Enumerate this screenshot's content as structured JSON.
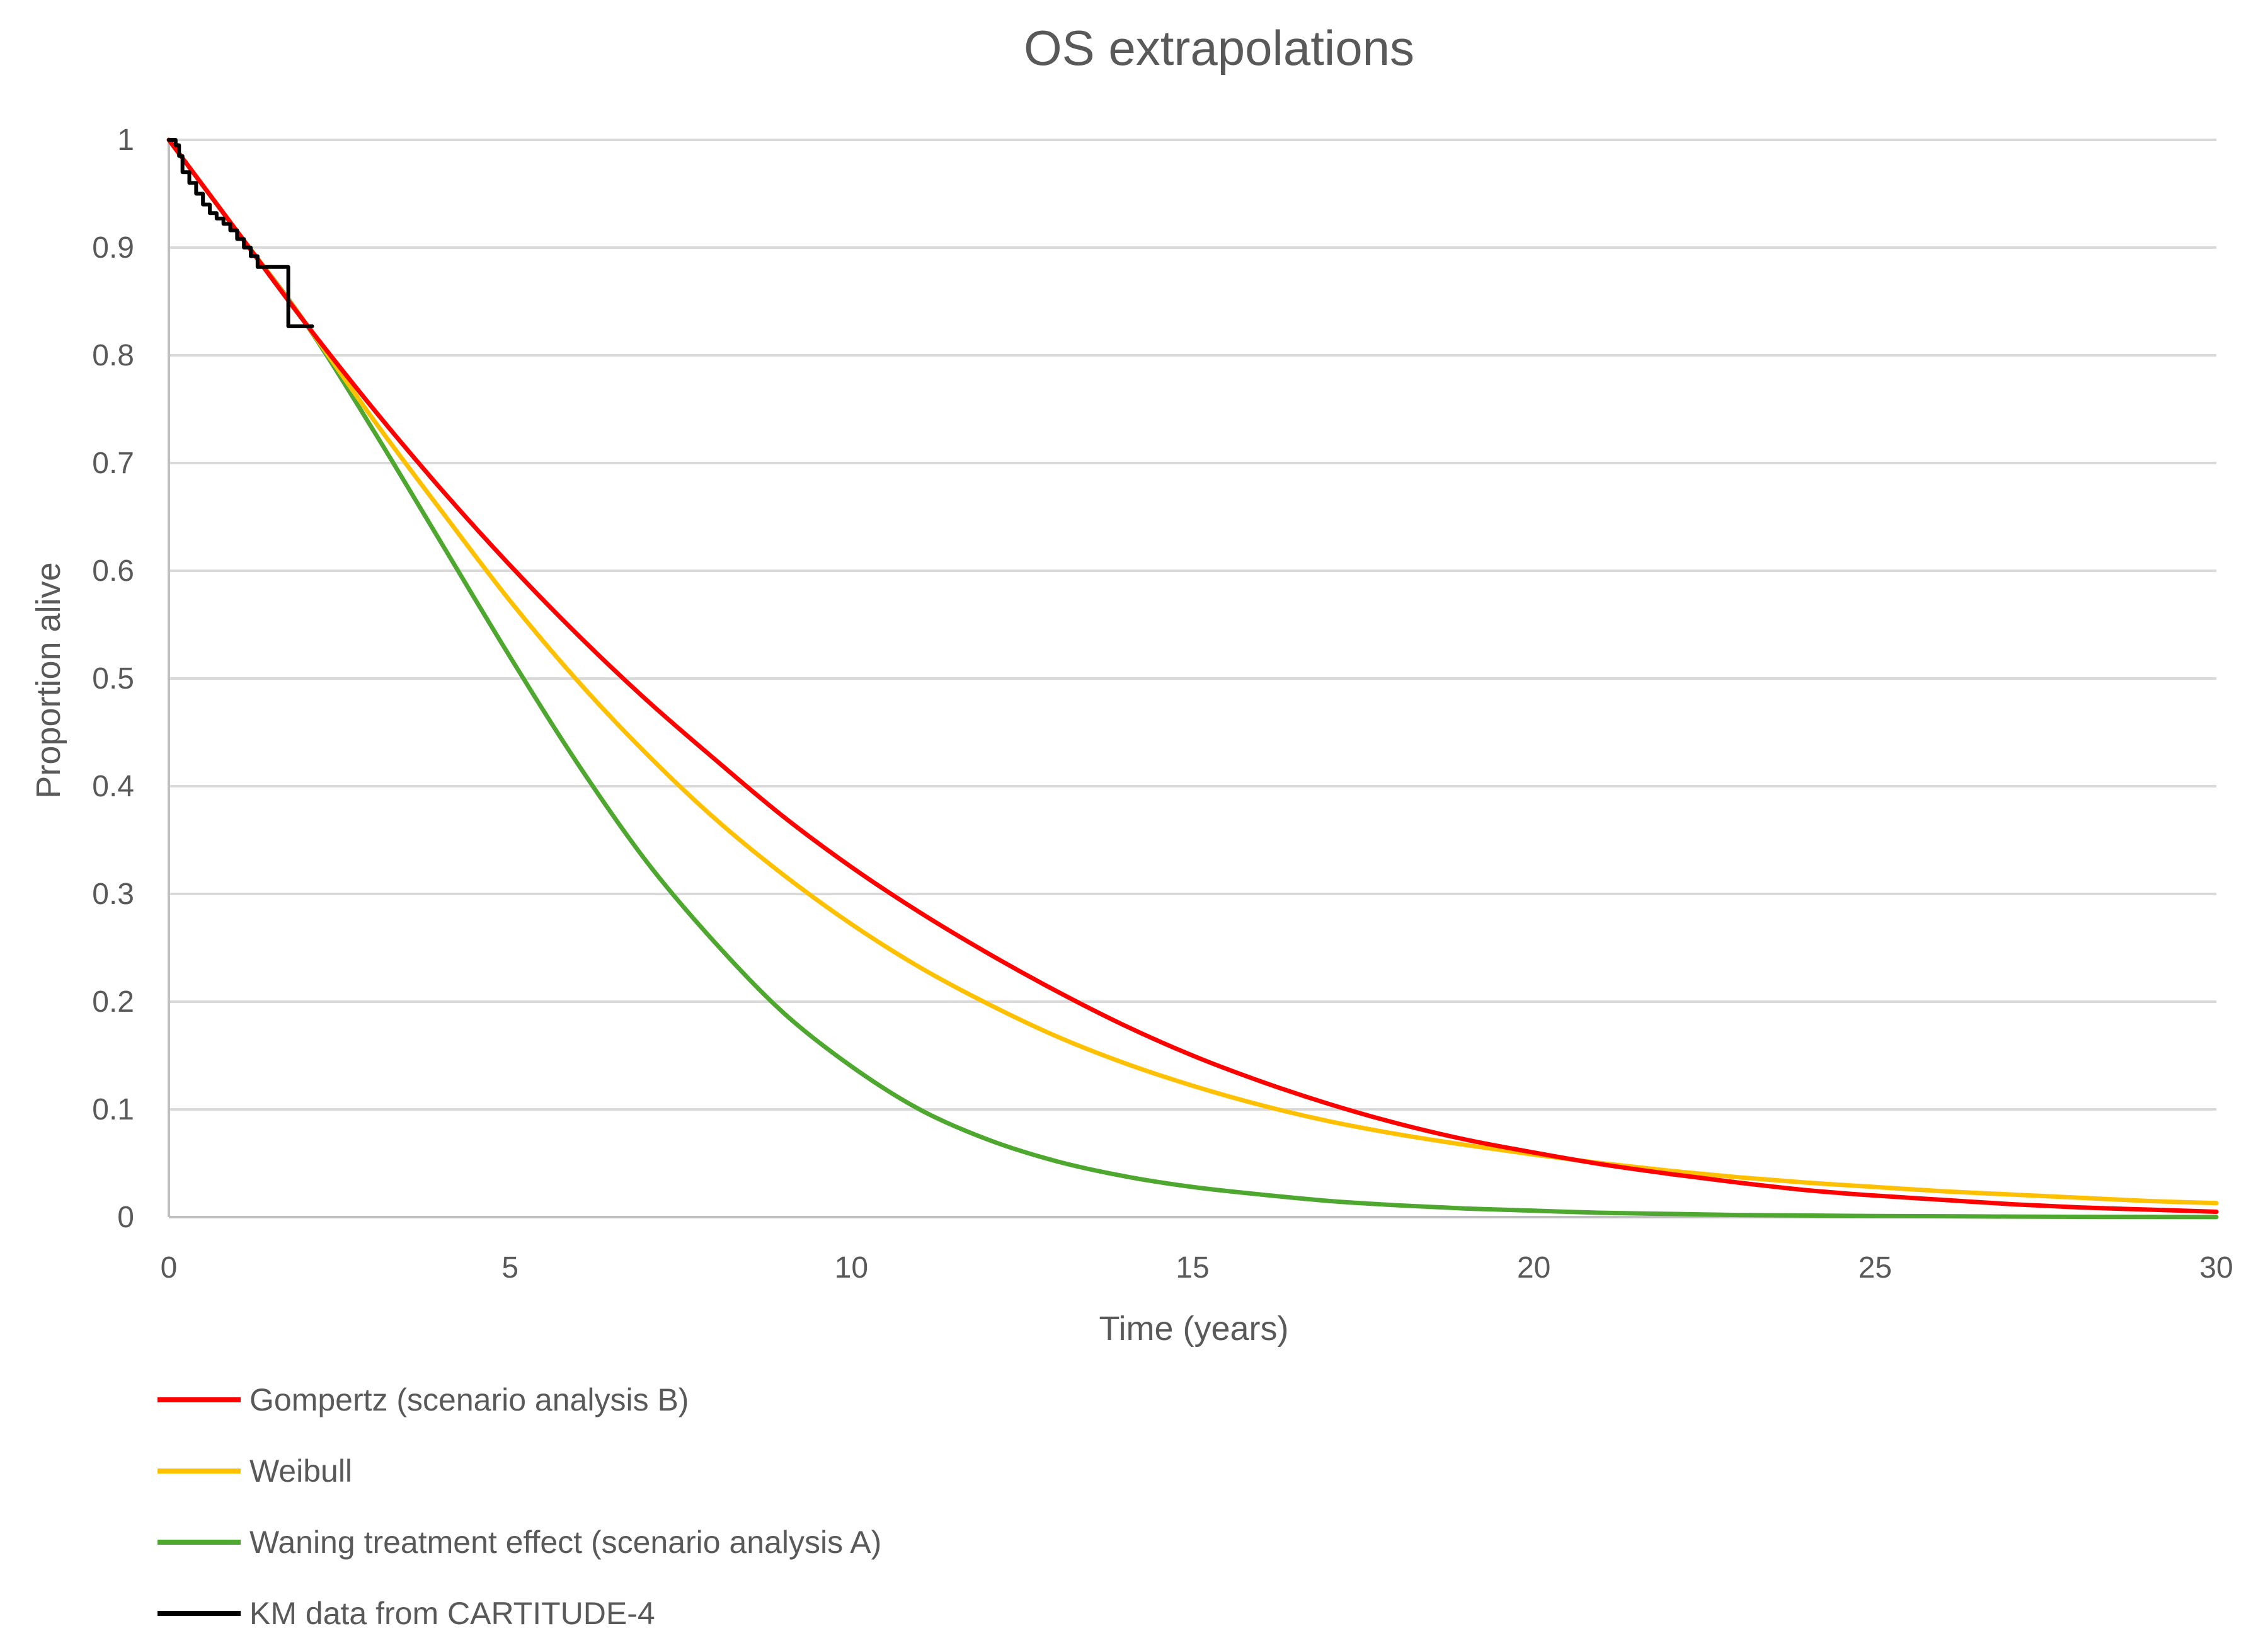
{
  "chart_data": {
    "type": "line",
    "title": "OS extrapolations",
    "xlabel": "Time (years)",
    "ylabel": "Proportion alive",
    "xlim": [
      0,
      30
    ],
    "ylim": [
      0,
      1
    ],
    "x_ticks": [
      0,
      5,
      10,
      15,
      20,
      25,
      30
    ],
    "y_ticks": [
      0,
      0.1,
      0.2,
      0.3,
      0.4,
      0.5,
      0.6,
      0.7,
      0.8,
      0.9,
      1
    ],
    "x_tick_labels": [
      "0",
      "5",
      "10",
      "15",
      "20",
      "25",
      "30"
    ],
    "y_tick_labels": [
      "0",
      "0.1",
      "0.2",
      "0.3",
      "0.4",
      "0.5",
      "0.6",
      "0.7",
      "0.8",
      "0.9",
      "1"
    ],
    "grid": "horizontal",
    "legend_position": "bottom-left",
    "series": [
      {
        "name": "Gompertz (scenario analysis B)",
        "color": "#ff0000",
        "step": false,
        "x": [
          0,
          1,
          2,
          3,
          4,
          5,
          6,
          7,
          8,
          9,
          10,
          11,
          12,
          13,
          14,
          15,
          16,
          17,
          18,
          19,
          20,
          21,
          22,
          23,
          24,
          25,
          26,
          27,
          28,
          29,
          30
        ],
        "y": [
          1.0,
          0.915,
          0.83,
          0.75,
          0.675,
          0.605,
          0.54,
          0.48,
          0.425,
          0.372,
          0.325,
          0.283,
          0.245,
          0.21,
          0.178,
          0.15,
          0.126,
          0.105,
          0.087,
          0.072,
          0.06,
          0.049,
          0.04,
          0.032,
          0.025,
          0.02,
          0.016,
          0.012,
          0.009,
          0.007,
          0.005
        ]
      },
      {
        "name": "Weibull",
        "color": "#ffc000",
        "step": false,
        "x": [
          0,
          1,
          2,
          3,
          4,
          5,
          6,
          7,
          8,
          9,
          10,
          11,
          12,
          13,
          14,
          15,
          16,
          17,
          18,
          19,
          20,
          21,
          22,
          23,
          24,
          25,
          26,
          27,
          28,
          29,
          30
        ],
        "y": [
          1.0,
          0.915,
          0.83,
          0.74,
          0.655,
          0.572,
          0.497,
          0.43,
          0.37,
          0.318,
          0.272,
          0.232,
          0.198,
          0.168,
          0.143,
          0.122,
          0.104,
          0.089,
          0.077,
          0.067,
          0.058,
          0.05,
          0.043,
          0.037,
          0.032,
          0.028,
          0.024,
          0.021,
          0.018,
          0.015,
          0.013
        ]
      },
      {
        "name": "Waning treatment effect (scenario analysis A)",
        "color": "#4ea72e",
        "step": false,
        "x": [
          0,
          1,
          2,
          3,
          4,
          5,
          6,
          7,
          8,
          9,
          10,
          11,
          12,
          13,
          14,
          15,
          16,
          17,
          18,
          19,
          20,
          21,
          22,
          23,
          24,
          25,
          26,
          27,
          28,
          29,
          30
        ],
        "y": [
          1.0,
          0.915,
          0.83,
          0.73,
          0.625,
          0.52,
          0.42,
          0.33,
          0.255,
          0.19,
          0.14,
          0.1,
          0.072,
          0.052,
          0.038,
          0.028,
          0.021,
          0.015,
          0.011,
          0.008,
          0.006,
          0.004,
          0.003,
          0.002,
          0.0015,
          0.001,
          0.0008,
          0.0005,
          0.0003,
          0.0002,
          0.0001
        ]
      },
      {
        "name": "KM data from CARTITUDE-4",
        "color": "#000000",
        "step": true,
        "x": [
          0,
          0.1,
          0.15,
          0.2,
          0.3,
          0.4,
          0.5,
          0.6,
          0.7,
          0.8,
          0.9,
          1.0,
          1.1,
          1.2,
          1.3,
          1.7,
          1.75,
          2.1
        ],
        "y": [
          1.0,
          0.995,
          0.985,
          0.97,
          0.96,
          0.95,
          0.94,
          0.932,
          0.927,
          0.922,
          0.916,
          0.908,
          0.9,
          0.892,
          0.882,
          0.882,
          0.827,
          0.827
        ]
      }
    ]
  }
}
